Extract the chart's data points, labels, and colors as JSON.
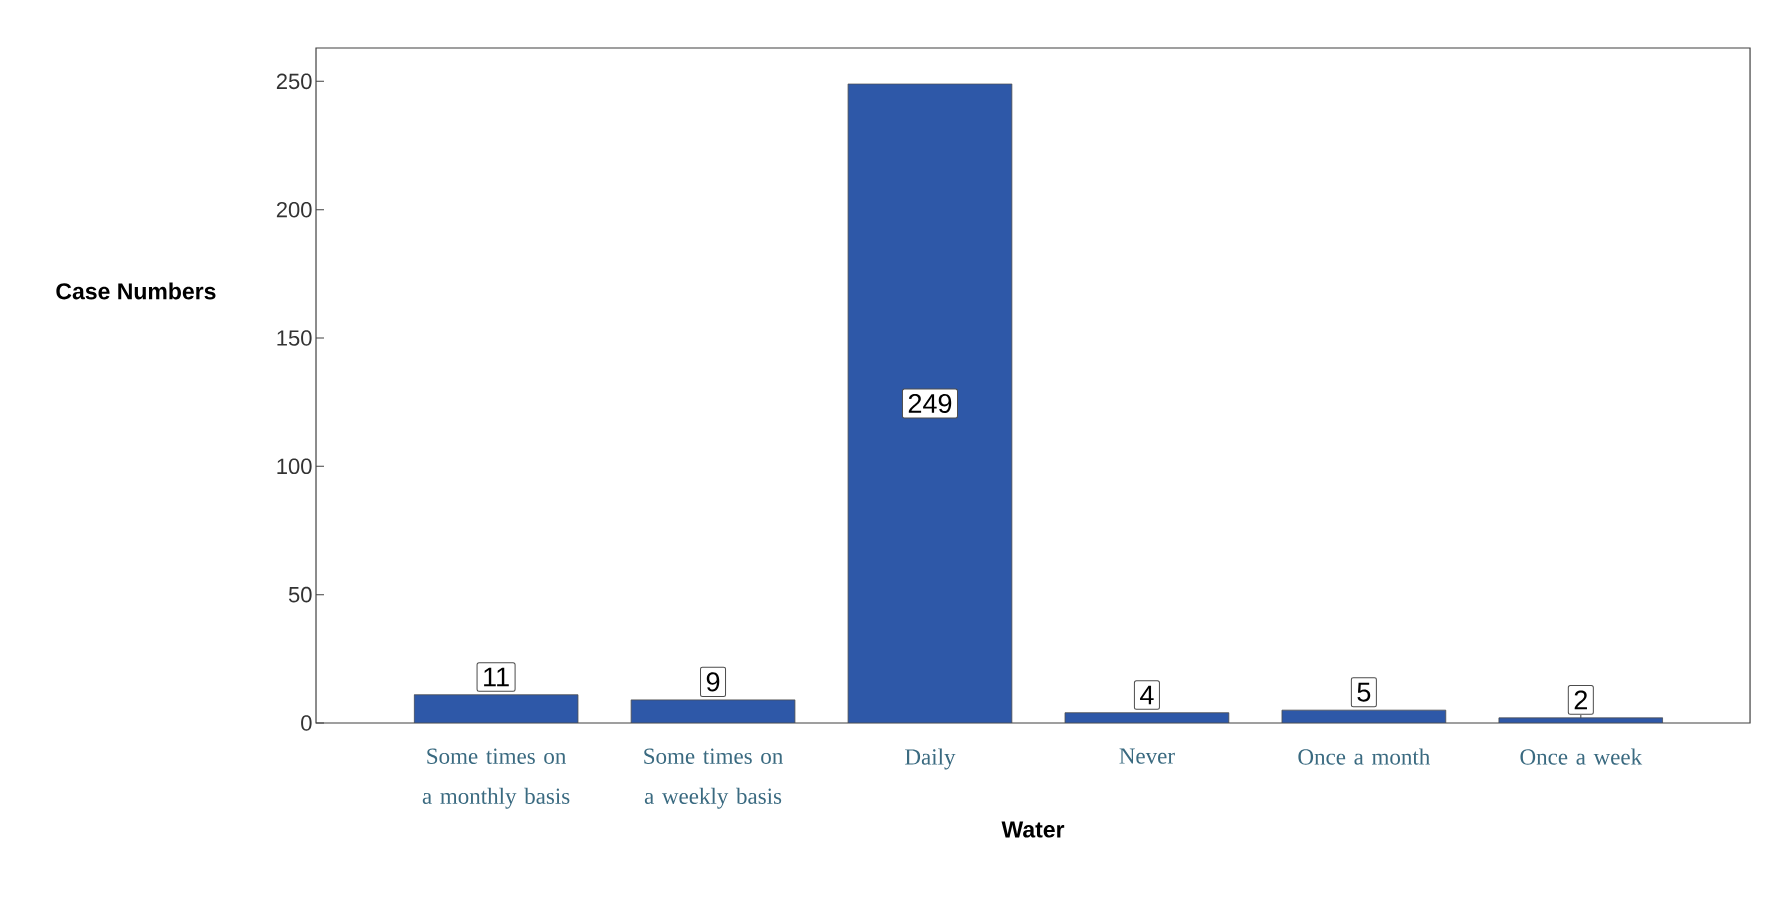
{
  "chart_data": {
    "type": "bar",
    "xlabel": "Water",
    "ylabel": "Case Numbers",
    "categories": [
      "Some times on a monthly basis",
      "Some times on a weekly basis",
      "Daily",
      "Never",
      "Once a month",
      "Once a week"
    ],
    "values": [
      11,
      9,
      249,
      4,
      5,
      2
    ],
    "color": "#2e58a8",
    "ylim": [
      0,
      263
    ],
    "yticks": [
      0,
      50,
      100,
      150,
      200,
      250
    ],
    "grid": false,
    "data_labels": true
  }
}
